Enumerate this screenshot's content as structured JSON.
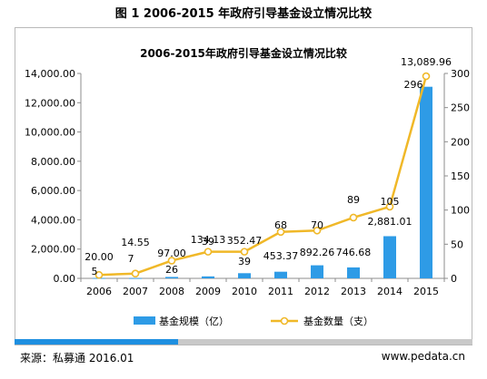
{
  "figure_title": "图 1 2006-2015 年政府引导基金设立情况比较",
  "footer": {
    "source": "来源：私募通 2016.01",
    "website": "www.pedata.cn"
  },
  "colors": {
    "bar": "#2e9be6",
    "line": "#f0b828",
    "marker_fill": "#ffffff",
    "footer_accent": "#1e8fe0"
  },
  "chart_data": {
    "type": "bar+line",
    "title": "2006-2015年政府引导基金设立情况比较",
    "categories": [
      "2006",
      "2007",
      "2008",
      "2009",
      "2010",
      "2011",
      "2012",
      "2013",
      "2014",
      "2015"
    ],
    "series": [
      {
        "name": "基金规模（亿）",
        "type": "bar",
        "axis": "left",
        "values": [
          20.0,
          14.55,
          97.0,
          134.13,
          352.47,
          453.37,
          892.26,
          746.68,
          2881.01,
          13089.96
        ],
        "labels": [
          "20.00",
          "14.55",
          "97.00",
          "134.13",
          "352.47",
          "453.37",
          "892.26",
          "746.68",
          "2,881.01",
          "13,089.96"
        ]
      },
      {
        "name": "基金数量（支）",
        "type": "line",
        "axis": "right",
        "values": [
          5,
          7,
          26,
          39,
          39,
          68,
          70,
          89,
          105,
          296
        ],
        "labels": [
          "5",
          "7",
          "26",
          "39",
          "39",
          "68",
          "70",
          "89",
          "105",
          "296"
        ]
      }
    ],
    "y_left": {
      "range": [
        0,
        14000
      ],
      "ticks": [
        0,
        2000,
        4000,
        6000,
        8000,
        10000,
        12000,
        14000
      ],
      "tick_labels": [
        "0.00",
        "2,000.00",
        "4,000.00",
        "6,000.00",
        "8,000.00",
        "10,000.00",
        "12,000.00",
        "14,000.00"
      ]
    },
    "y_right": {
      "range": [
        0,
        300
      ],
      "ticks": [
        0,
        50,
        100,
        150,
        200,
        250,
        300
      ],
      "tick_labels": [
        "0",
        "50",
        "100",
        "150",
        "200",
        "250",
        "300"
      ]
    },
    "grid": false,
    "legend_position": "bottom"
  }
}
